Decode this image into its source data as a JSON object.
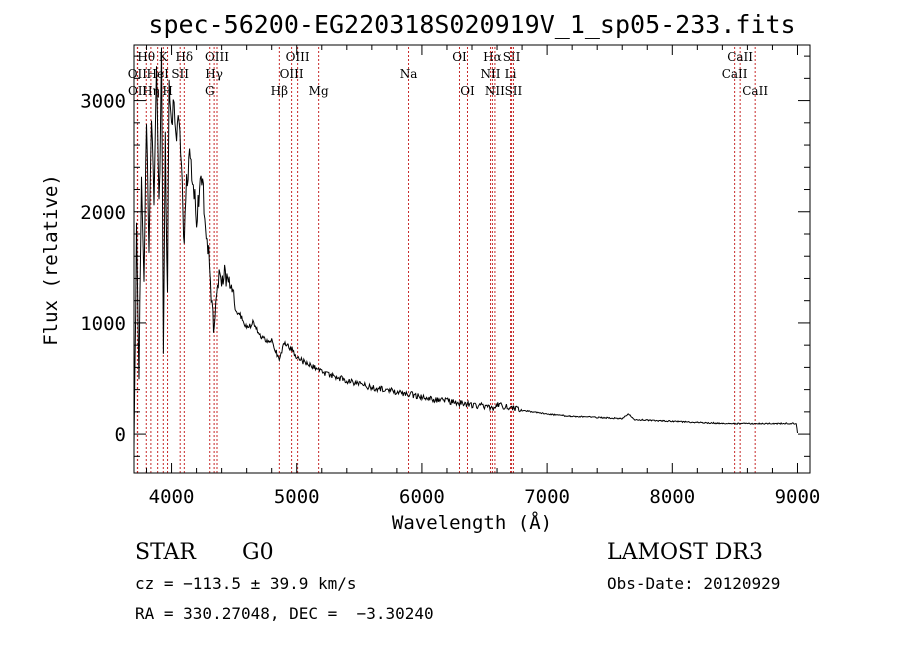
{
  "chart_data": {
    "type": "line",
    "title": "spec-56200-EG220318S020919V_1_sp05-233.fits",
    "xlabel": "Wavelength (Å)",
    "ylabel": "Flux (relative)",
    "xlim": [
      3700,
      9100
    ],
    "ylim": [
      -350,
      3500
    ],
    "xticks": [
      4000,
      5000,
      6000,
      7000,
      8000,
      9000
    ],
    "yticks": [
      0,
      1000,
      2000,
      3000
    ],
    "series": [
      {
        "name": "flux",
        "x": [
          3700,
          3720,
          3740,
          3760,
          3780,
          3800,
          3820,
          3840,
          3860,
          3880,
          3900,
          3920,
          3935,
          3950,
          3968,
          3980,
          4000,
          4020,
          4040,
          4060,
          4080,
          4102,
          4120,
          4150,
          4180,
          4200,
          4230,
          4260,
          4290,
          4310,
          4330,
          4340,
          4360,
          4380,
          4400,
          4430,
          4460,
          4490,
          4520,
          4560,
          4600,
          4650,
          4700,
          4750,
          4800,
          4861,
          4900,
          4950,
          5000,
          5050,
          5100,
          5150,
          5200,
          5300,
          5400,
          5500,
          5600,
          5700,
          5800,
          5900,
          6000,
          6100,
          6200,
          6300,
          6400,
          6500,
          6563,
          6600,
          6700,
          6800,
          6900,
          7000,
          7200,
          7400,
          7600,
          7650,
          7700,
          7900,
          8100,
          8300,
          8500,
          8600,
          8700,
          8800,
          8900,
          8990,
          9000
        ],
        "y": [
          0,
          1800,
          600,
          2300,
          1400,
          2800,
          1600,
          2900,
          2100,
          3300,
          2000,
          3400,
          800,
          2600,
          1200,
          3200,
          2700,
          3000,
          2600,
          2850,
          2350,
          1700,
          2300,
          2500,
          2200,
          1900,
          2300,
          2100,
          1700,
          1400,
          1000,
          900,
          1300,
          1500,
          1400,
          1450,
          1300,
          1200,
          1100,
          1050,
          950,
          1000,
          900,
          850,
          850,
          650,
          820,
          780,
          700,
          650,
          620,
          600,
          560,
          520,
          480,
          450,
          420,
          400,
          380,
          360,
          330,
          310,
          300,
          280,
          260,
          250,
          230,
          260,
          240,
          210,
          200,
          180,
          160,
          150,
          140,
          180,
          130,
          120,
          110,
          100,
          95,
          95,
          95,
          95,
          95,
          95,
          10
        ]
      }
    ],
    "lines": [
      {
        "label": "Hθ",
        "x": 3798,
        "row": 0
      },
      {
        "label": "OII",
        "x": 3727,
        "row": 1
      },
      {
        "label": "OII",
        "x": 3729,
        "row": 2
      },
      {
        "label": "Hη",
        "x": 3835,
        "row": 2
      },
      {
        "label": "K",
        "x": 3934,
        "row": 0
      },
      {
        "label": "HeI",
        "x": 3889,
        "row": 1
      },
      {
        "label": "H",
        "x": 3968,
        "row": 2
      },
      {
        "label": "SII",
        "x": 4069,
        "row": 1
      },
      {
        "label": "Hδ",
        "x": 4102,
        "row": 0
      },
      {
        "label": "OIII",
        "x": 4363,
        "row": 0
      },
      {
        "label": "Hγ",
        "x": 4340,
        "row": 1
      },
      {
        "label": "G",
        "x": 4305,
        "row": 2
      },
      {
        "label": "Hβ",
        "x": 4861,
        "row": 2
      },
      {
        "label": "OIII",
        "x": 5007,
        "row": 0
      },
      {
        "label": "OIII",
        "x": 4959,
        "row": 1
      },
      {
        "label": "Mg",
        "x": 5175,
        "row": 2
      },
      {
        "label": "Na",
        "x": 5893,
        "row": 1
      },
      {
        "label": "OI",
        "x": 6300,
        "row": 0
      },
      {
        "label": "OI",
        "x": 6364,
        "row": 2
      },
      {
        "label": "Hα",
        "x": 6563,
        "row": 0
      },
      {
        "label": "NII",
        "x": 6548,
        "row": 1
      },
      {
        "label": "NII",
        "x": 6583,
        "row": 2
      },
      {
        "label": "SII",
        "x": 6716,
        "row": 0
      },
      {
        "label": "Li",
        "x": 6708,
        "row": 1
      },
      {
        "label": "SII",
        "x": 6731,
        "row": 2
      },
      {
        "label": "CaII",
        "x": 8542,
        "row": 0
      },
      {
        "label": "CaII",
        "x": 8498,
        "row": 1
      },
      {
        "label": "CaII",
        "x": 8662,
        "row": 2
      }
    ]
  },
  "info": {
    "class": "STAR",
    "subclass": "G0",
    "survey": "LAMOST DR3",
    "cz": "cz = −113.5 ± 39.9 km/s",
    "obs_date": "Obs-Date: 20120929",
    "coords": "RA = 330.27048, DEC =  −3.30240"
  }
}
